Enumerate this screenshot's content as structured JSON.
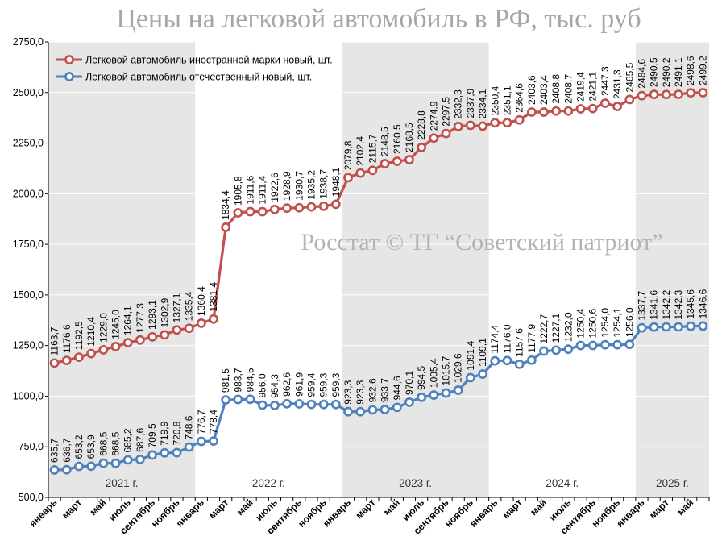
{
  "chart_data": {
    "type": "line",
    "title": "Цены на легковой автомобиль в РФ, тыс. руб",
    "watermark": "Росстат © ТГ “Советский патриот”",
    "ylim": [
      500,
      2750
    ],
    "yticks": [
      "500,0",
      "750,0",
      "1000,0",
      "1250,0",
      "1500,0",
      "1750,0",
      "2000,0",
      "2250,0",
      "2500,0",
      "2750,0"
    ],
    "ytick_values": [
      500,
      750,
      1000,
      1250,
      1500,
      1750,
      2000,
      2250,
      2500,
      2750
    ],
    "legend_position": "top-left",
    "grid": true,
    "x_tick_labels": [
      "январь",
      "март",
      "май",
      "июль",
      "сентябрь",
      "ноябрь",
      "январь",
      "март",
      "май",
      "июль",
      "сентябрь",
      "ноябрь",
      "январь",
      "март",
      "май",
      "июль",
      "сентябрь",
      "ноябрь",
      "январь",
      "март",
      "май",
      "июль",
      "сентябрь",
      "ноябрь",
      "январь",
      "март",
      "май"
    ],
    "years": [
      {
        "label": "2021 г.",
        "start": 0,
        "end": 11,
        "shaded": true
      },
      {
        "label": "2022 г.",
        "start": 12,
        "end": 23,
        "shaded": false
      },
      {
        "label": "2023 г.",
        "start": 24,
        "end": 35,
        "shaded": true
      },
      {
        "label": "2024 г.",
        "start": 36,
        "end": 47,
        "shaded": false
      },
      {
        "label": "2025 г.",
        "start": 48,
        "end": 53,
        "shaded": true
      }
    ],
    "series": [
      {
        "name": "Легковой автомобиль иностранной марки новый, шт.",
        "color": "#c0504d",
        "values": [
          1163.7,
          1176.6,
          1192.5,
          1210.4,
          1229.0,
          1245.0,
          1264.1,
          1277.3,
          1293.1,
          1302.9,
          1327.1,
          1335.4,
          1360.4,
          1381.4,
          1834.4,
          1905.8,
          1911.6,
          1911.4,
          1922.6,
          1928.9,
          1930.7,
          1935.2,
          1938.7,
          1948.1,
          2079.8,
          2102.4,
          2115.7,
          2148.5,
          2160.5,
          2168.5,
          2228.8,
          2274.9,
          2297.5,
          2332.3,
          2337.9,
          2334.1,
          2350.4,
          2351.1,
          2364.6,
          2403.6,
          2403.4,
          2408.8,
          2408.7,
          2419.4,
          2421.1,
          2447.3,
          2431.3,
          2465.5,
          2484.6,
          2490.5,
          2490.2,
          2491.1,
          2498.6,
          2499.2
        ],
        "labels": [
          "1163,7",
          "1176,6",
          "1192,5",
          "1210,4",
          "1229,0",
          "1245,0",
          "1264,1",
          "1277,3",
          "1293,1",
          "1302,9",
          "1327,1",
          "1335,4",
          "1360,4",
          "1381,4",
          "1834,4",
          "1905,8",
          "1911,6",
          "1911,4",
          "1922,6",
          "1928,9",
          "1930,7",
          "1935,2",
          "1938,7",
          "1948,1",
          "2079,8",
          "2102,4",
          "2115,7",
          "2148,5",
          "2160,5",
          "2168,5",
          "2228,8",
          "2274,9",
          "2297,5",
          "2332,3",
          "2337,9",
          "2334,1",
          "2350,4",
          "2351,1",
          "2364,6",
          "2403,6",
          "2403,4",
          "2408,8",
          "2408,7",
          "2419,4",
          "2421,1",
          "2447,3",
          "2431,3",
          "2465,5",
          "2484,6",
          "2490,5",
          "2490,2",
          "2491,1",
          "2498,6",
          "2499,2"
        ]
      },
      {
        "name": "Легковой автомобиль отечественный новый, шт.",
        "color": "#4f81bd",
        "values": [
          635.7,
          636.7,
          653.2,
          653.9,
          668.5,
          668.5,
          685.2,
          687.6,
          709.5,
          719.9,
          720.8,
          748.6,
          776.7,
          778.4,
          981.5,
          983.7,
          984.5,
          956.0,
          954.3,
          962.6,
          961.9,
          959.4,
          959.3,
          959.3,
          923.3,
          923.3,
          932.6,
          933.7,
          944.6,
          970.1,
          994.5,
          1005.4,
          1015.7,
          1029.6,
          1091.4,
          1109.1,
          1174.4,
          1176.0,
          1157.6,
          1177.9,
          1222.7,
          1227.1,
          1232.0,
          1250.4,
          1250.6,
          1254.0,
          1254.1,
          1256.0,
          1337.7,
          1341.6,
          1342.2,
          1342.3,
          1345.6,
          1346.6
        ],
        "labels": [
          "635,7",
          "636,7",
          "653,2",
          "653,9",
          "668,5",
          "668,5",
          "685,2",
          "687,6",
          "709,5",
          "719,9",
          "720,8",
          "748,6",
          "776,7",
          "778,4",
          "981,5",
          "983,7",
          "984,5",
          "956,0",
          "954,3",
          "962,6",
          "961,9",
          "959,4",
          "959,3",
          "959,3",
          "923,3",
          "923,3",
          "932,6",
          "933,7",
          "944,6",
          "970,1",
          "994,5",
          "1005,4",
          "1015,7",
          "1029,6",
          "1091,4",
          "1109,1",
          "1174,4",
          "1176,0",
          "1157,6",
          "1177,9",
          "1222,7",
          "1227,1",
          "1232,0",
          "1250,4",
          "1250,6",
          "1254,0",
          "1254,1",
          "1256,0",
          "1337,7",
          "1341,6",
          "1342,2",
          "1342,3",
          "1345,6",
          "1346,6"
        ]
      }
    ]
  }
}
